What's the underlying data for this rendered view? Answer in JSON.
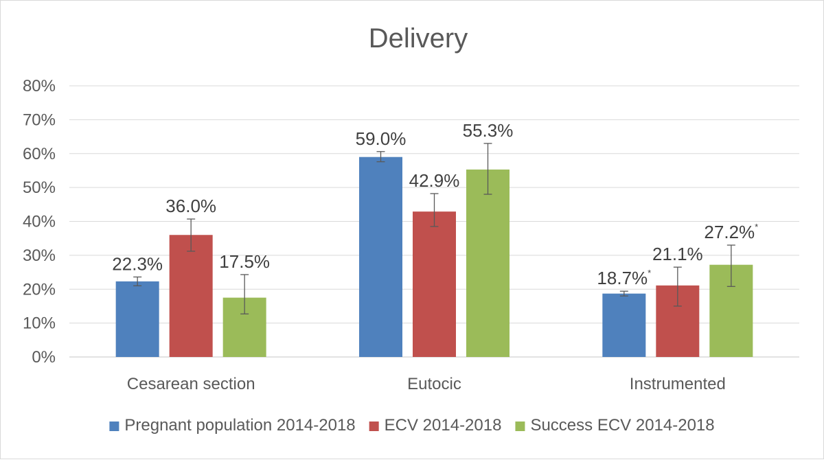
{
  "chart_data": {
    "type": "bar",
    "title": "Delivery",
    "xlabel": "",
    "ylabel": "",
    "ylim": [
      0,
      80
    ],
    "y_ticks": [
      0,
      10,
      20,
      30,
      40,
      50,
      60,
      70,
      80
    ],
    "y_tick_labels": [
      "0%",
      "10%",
      "20%",
      "30%",
      "40%",
      "50%",
      "60%",
      "70%",
      "80%"
    ],
    "grid": true,
    "legend_position": "bottom",
    "categories": [
      "Cesarean section",
      "Eutocic",
      "Instrumented"
    ],
    "series": [
      {
        "name": "Pregnant population 2014-2018",
        "color": "#4f81bd",
        "values": [
          22.3,
          59.0,
          18.7
        ],
        "labels": [
          "22.3%",
          "59.0%",
          "18.7%"
        ],
        "label_marks": [
          "",
          "",
          "*"
        ],
        "error_low": [
          21.0,
          57.6,
          18.0
        ],
        "error_high": [
          23.6,
          60.6,
          19.4
        ]
      },
      {
        "name": "ECV 2014-2018",
        "color": "#c0504d",
        "values": [
          36.0,
          42.9,
          21.1
        ],
        "labels": [
          "36.0%",
          "42.9%",
          "21.1%"
        ],
        "label_marks": [
          "",
          "",
          ""
        ],
        "error_low": [
          31.2,
          38.5,
          15.0
        ],
        "error_high": [
          40.7,
          48.2,
          26.5
        ]
      },
      {
        "name": "Success ECV 2014-2018",
        "color": "#9bbb59",
        "values": [
          17.5,
          55.3,
          27.2
        ],
        "labels": [
          "17.5%",
          "55.3%",
          "27.2%"
        ],
        "label_marks": [
          "",
          "",
          "*"
        ],
        "error_low": [
          12.7,
          48.0,
          20.8
        ],
        "error_high": [
          24.3,
          63.0,
          33.0
        ]
      }
    ]
  }
}
